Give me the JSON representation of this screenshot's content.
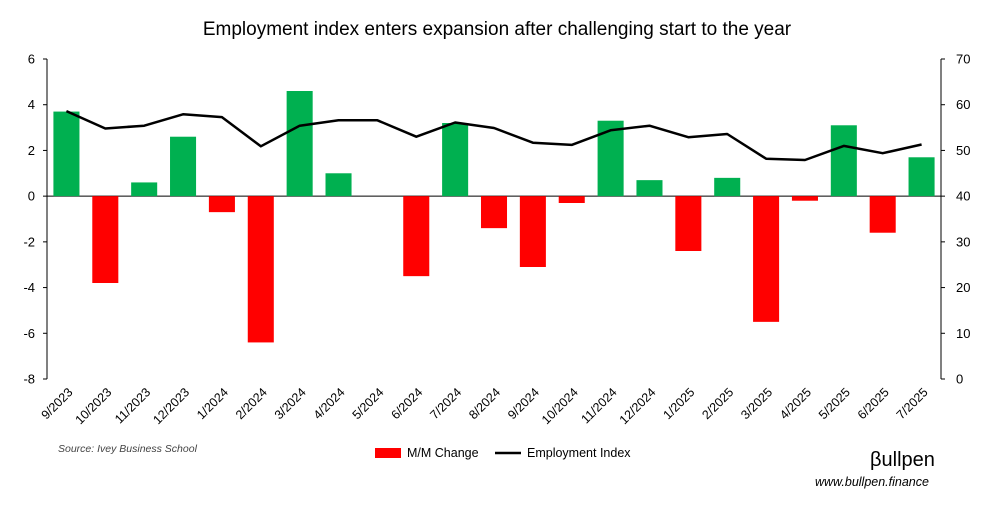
{
  "chart_data": {
    "type": "bar",
    "title": "Employment index enters expansion after challenging start to the year",
    "categories": [
      "9/2023",
      "10/2023",
      "11/2023",
      "12/2023",
      "1/2024",
      "2/2024",
      "3/2024",
      "4/2024",
      "5/2024",
      "6/2024",
      "7/2024",
      "8/2024",
      "9/2024",
      "10/2024",
      "11/2024",
      "12/2024",
      "1/2025",
      "2/2025",
      "3/2025",
      "4/2025",
      "5/2025",
      "6/2025",
      "7/2025"
    ],
    "series": [
      {
        "name": "M/M Change",
        "axis": "left",
        "kind": "bar",
        "values": [
          3.7,
          -3.8,
          0.6,
          2.6,
          -0.7,
          -6.4,
          4.6,
          1.0,
          0.0,
          -3.5,
          3.2,
          -1.4,
          -3.1,
          -0.3,
          3.3,
          0.7,
          -2.4,
          0.8,
          -5.5,
          -0.2,
          3.1,
          -1.6,
          1.7
        ]
      },
      {
        "name": "Employment Index",
        "axis": "right",
        "kind": "line",
        "values": [
          58.6,
          54.8,
          55.4,
          57.9,
          57.3,
          50.9,
          55.4,
          56.6,
          56.6,
          53.0,
          56.1,
          54.9,
          51.7,
          51.2,
          54.4,
          55.4,
          52.9,
          53.6,
          48.2,
          47.9,
          51.0,
          49.4,
          51.3
        ]
      }
    ],
    "y_left": {
      "min": -8,
      "max": 6,
      "ticks": [
        6,
        4,
        2,
        0,
        -2,
        -4,
        -6,
        -8
      ]
    },
    "y_right": {
      "min": 0,
      "max": 70,
      "ticks": [
        70,
        60,
        50,
        40,
        30,
        20,
        10,
        0
      ]
    },
    "grid": false,
    "legend_position": "bottom"
  },
  "colors": {
    "positive": "#00b050",
    "negative": "#ff0000",
    "line": "#000000"
  },
  "source": "Source: Ivey Business School",
  "brand": {
    "name": "βullpen",
    "url": "www.bullpen.finance"
  }
}
